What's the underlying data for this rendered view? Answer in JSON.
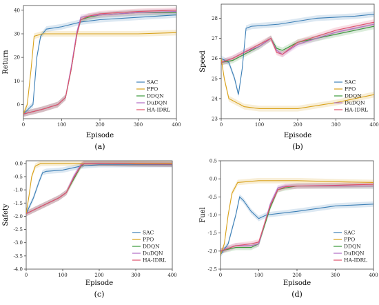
{
  "chart_data": [
    {
      "id": "a",
      "type": "line",
      "panel_label": "(a)",
      "xlabel": "Episode",
      "ylabel": "Return",
      "xlim": [
        0,
        400
      ],
      "ylim": [
        -6,
        42
      ],
      "xticks": [
        0,
        100,
        200,
        300,
        400
      ],
      "yticks": [
        0,
        10,
        20,
        30,
        40
      ],
      "legend_position": "lower-right",
      "series": [
        {
          "name": "SAC",
          "color": "#3c7fb6",
          "x": [
            0,
            25,
            35,
            45,
            60,
            100,
            150,
            200,
            300,
            400
          ],
          "y": [
            -4,
            0,
            20,
            29,
            32,
            33,
            35,
            36,
            37,
            38
          ]
        },
        {
          "name": "PPO",
          "color": "#d9a21b",
          "x": [
            0,
            10,
            20,
            28,
            50,
            100,
            200,
            300,
            400
          ],
          "y": [
            -4,
            0,
            15,
            29,
            30,
            30,
            30,
            30,
            30.5
          ]
        },
        {
          "name": "DDQN",
          "color": "#3a9a3a",
          "x": [
            0,
            50,
            90,
            110,
            125,
            140,
            150,
            170,
            200,
            300,
            400
          ],
          "y": [
            -4,
            -2,
            0,
            3,
            15,
            30,
            36,
            37,
            38,
            39,
            39
          ]
        },
        {
          "name": "DuDQN",
          "color": "#b06cc4",
          "x": [
            0,
            50,
            90,
            110,
            125,
            140,
            150,
            170,
            200,
            300,
            400
          ],
          "y": [
            -4,
            -2,
            0,
            3,
            16,
            31,
            37,
            37.5,
            38,
            39,
            39.5
          ]
        },
        {
          "name": "HA-IDRL",
          "color": "#e0506a",
          "x": [
            0,
            50,
            90,
            110,
            125,
            140,
            150,
            170,
            200,
            300,
            400
          ],
          "y": [
            -4,
            -2,
            0,
            3,
            15,
            30,
            36,
            37.5,
            38.5,
            39.5,
            40
          ]
        }
      ]
    },
    {
      "id": "b",
      "type": "line",
      "panel_label": "(b)",
      "xlabel": "Episode",
      "ylabel": "Speed",
      "xlim": [
        0,
        400
      ],
      "ylim": [
        23,
        28.7
      ],
      "xticks": [
        0,
        100,
        200,
        300,
        400
      ],
      "yticks": [
        23,
        24,
        25,
        26,
        27,
        28
      ],
      "legend_position": "lower-right",
      "series": [
        {
          "name": "SAC",
          "color": "#3c7fb6",
          "x": [
            0,
            20,
            35,
            45,
            55,
            65,
            80,
            150,
            250,
            350,
            400
          ],
          "y": [
            26,
            25.8,
            25,
            24.2,
            25.5,
            27.5,
            27.6,
            27.7,
            28,
            28.1,
            28.2
          ]
        },
        {
          "name": "PPO",
          "color": "#d9a21b",
          "x": [
            0,
            8,
            20,
            40,
            60,
            100,
            200,
            300,
            350,
            400
          ],
          "y": [
            26,
            25,
            24,
            23.8,
            23.6,
            23.5,
            23.5,
            23.8,
            24,
            24.2
          ]
        },
        {
          "name": "DDQN",
          "color": "#3a9a3a",
          "x": [
            0,
            30,
            60,
            100,
            130,
            145,
            160,
            200,
            300,
            400
          ],
          "y": [
            25.8,
            25.9,
            26.2,
            26.6,
            27,
            26.5,
            26.4,
            26.8,
            27.2,
            27.6
          ]
        },
        {
          "name": "DuDQN",
          "color": "#b06cc4",
          "x": [
            0,
            30,
            60,
            100,
            130,
            145,
            160,
            200,
            300,
            400
          ],
          "y": [
            25.8,
            26,
            26.3,
            26.6,
            27,
            26.4,
            26.2,
            26.7,
            27.3,
            27.7
          ]
        },
        {
          "name": "HA-IDRL",
          "color": "#e0506a",
          "x": [
            0,
            30,
            60,
            100,
            130,
            145,
            160,
            200,
            300,
            400
          ],
          "y": [
            25.8,
            26,
            26.3,
            26.7,
            27,
            26.3,
            26.2,
            26.8,
            27.4,
            27.8
          ]
        }
      ]
    },
    {
      "id": "c",
      "type": "line",
      "panel_label": "(c)",
      "xlabel": "Episode",
      "ylabel": "Safety",
      "xlim": [
        0,
        400
      ],
      "ylim": [
        -4,
        0.1
      ],
      "xticks": [
        0,
        100,
        200,
        300,
        400
      ],
      "yticks": [
        0.0,
        -0.5,
        -1.0,
        -1.5,
        -2.0,
        -2.5,
        -3.0,
        -3.5,
        -4.0
      ],
      "legend_position": "lower-right",
      "series": [
        {
          "name": "SAC",
          "color": "#3c7fb6",
          "x": [
            0,
            20,
            35,
            45,
            55,
            100,
            150,
            200,
            300,
            400
          ],
          "y": [
            -1.9,
            -1.3,
            -0.7,
            -0.35,
            -0.3,
            -0.25,
            -0.1,
            -0.05,
            -0.05,
            -0.05
          ]
        },
        {
          "name": "PPO",
          "color": "#d9a21b",
          "x": [
            0,
            8,
            15,
            25,
            40,
            100,
            200,
            300,
            400
          ],
          "y": [
            -1.9,
            -1.2,
            -0.5,
            -0.1,
            0,
            0,
            0,
            0,
            0
          ]
        },
        {
          "name": "DDQN",
          "color": "#3a9a3a",
          "x": [
            0,
            30,
            60,
            90,
            110,
            130,
            150,
            160,
            200,
            300,
            400
          ],
          "y": [
            -1.9,
            -1.7,
            -1.5,
            -1.3,
            -1.1,
            -0.6,
            -0.1,
            0,
            0,
            -0.02,
            -0.03
          ]
        },
        {
          "name": "DuDQN",
          "color": "#b06cc4",
          "x": [
            0,
            30,
            60,
            90,
            110,
            130,
            150,
            160,
            200,
            300,
            400
          ],
          "y": [
            -1.9,
            -1.7,
            -1.5,
            -1.3,
            -1.1,
            -0.5,
            -0.05,
            0,
            0,
            -0.02,
            -0.03
          ]
        },
        {
          "name": "HA-IDRL",
          "color": "#e0506a",
          "x": [
            0,
            30,
            60,
            90,
            110,
            130,
            150,
            160,
            200,
            300,
            400
          ],
          "y": [
            -1.9,
            -1.7,
            -1.5,
            -1.3,
            -1.1,
            -0.55,
            -0.08,
            0,
            0,
            -0.02,
            -0.03
          ]
        }
      ]
    },
    {
      "id": "d",
      "type": "line",
      "panel_label": "(d)",
      "xlabel": "Episode",
      "ylabel": "Fuel",
      "xlim": [
        0,
        400
      ],
      "ylim": [
        -2.5,
        0.5
      ],
      "xticks": [
        0,
        100,
        200,
        300,
        400
      ],
      "yticks": [
        0.5,
        0.0,
        -0.5,
        -1.0,
        -1.5,
        -2.0,
        -2.5
      ],
      "legend_position": "lower-right",
      "series": [
        {
          "name": "SAC",
          "color": "#3c7fb6",
          "x": [
            0,
            20,
            40,
            50,
            60,
            80,
            100,
            120,
            200,
            300,
            400
          ],
          "y": [
            -2.1,
            -1.8,
            -1.0,
            -0.5,
            -0.6,
            -0.9,
            -1.1,
            -1.0,
            -0.9,
            -0.75,
            -0.7
          ]
        },
        {
          "name": "PPO",
          "color": "#d9a21b",
          "x": [
            0,
            10,
            20,
            30,
            45,
            100,
            200,
            300,
            400
          ],
          "y": [
            -2.1,
            -1.8,
            -1.0,
            -0.4,
            -0.1,
            -0.05,
            -0.05,
            -0.08,
            -0.1
          ]
        },
        {
          "name": "DDQN",
          "color": "#3a9a3a",
          "x": [
            0,
            40,
            80,
            100,
            130,
            150,
            170,
            200,
            300,
            400
          ],
          "y": [
            -2.0,
            -1.9,
            -1.9,
            -1.8,
            -0.8,
            -0.3,
            -0.25,
            -0.2,
            -0.2,
            -0.2
          ]
        },
        {
          "name": "DuDQN",
          "color": "#b06cc4",
          "x": [
            0,
            40,
            80,
            100,
            130,
            150,
            170,
            200,
            300,
            400
          ],
          "y": [
            -2.0,
            -1.85,
            -1.85,
            -1.8,
            -0.7,
            -0.25,
            -0.2,
            -0.2,
            -0.2,
            -0.2
          ]
        },
        {
          "name": "HA-IDRL",
          "color": "#e0506a",
          "x": [
            0,
            40,
            80,
            100,
            130,
            150,
            170,
            200,
            300,
            400
          ],
          "y": [
            -2.0,
            -1.85,
            -1.8,
            -1.75,
            -0.75,
            -0.3,
            -0.22,
            -0.2,
            -0.18,
            -0.15
          ]
        }
      ]
    }
  ]
}
